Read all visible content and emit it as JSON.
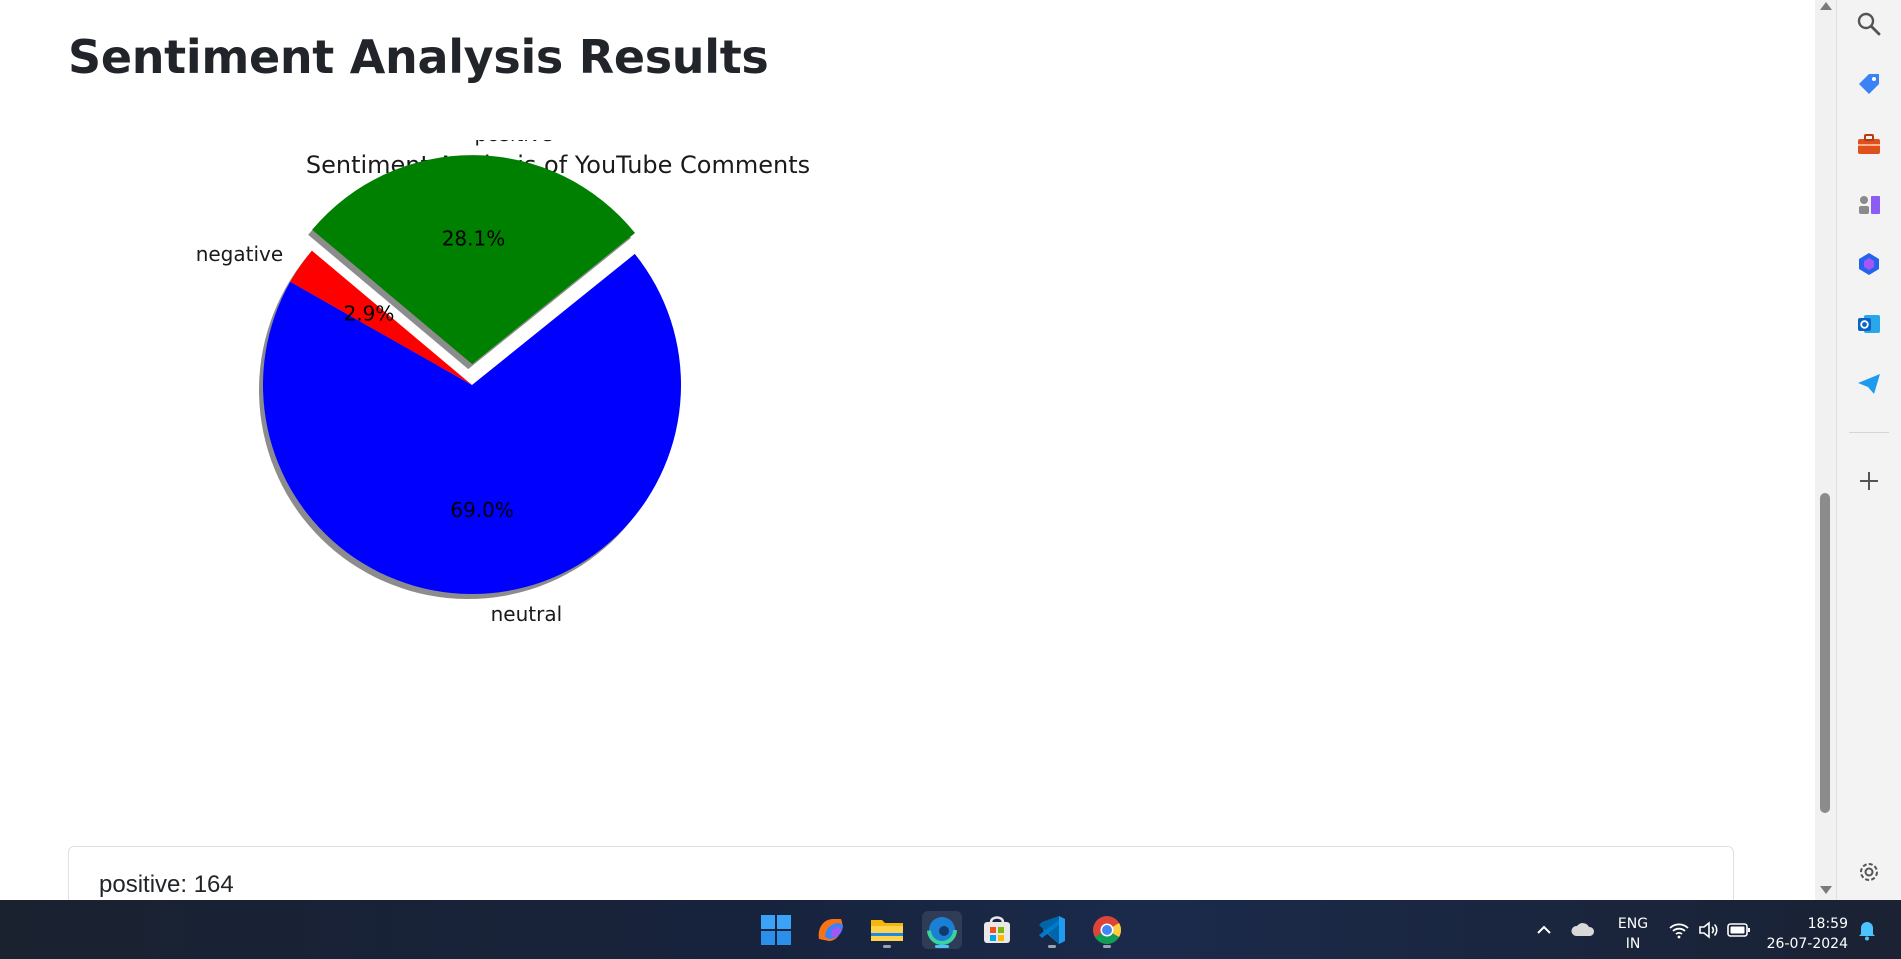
{
  "page": {
    "heading": "Sentiment Analysis Results",
    "counts": [
      {
        "label": "positive",
        "value": 164,
        "text": "positive: 164"
      }
    ]
  },
  "chart_data": {
    "type": "pie",
    "title": "Sentiment Analysis of YouTube Comments",
    "slices": [
      {
        "label": "negative",
        "percent": 2.9,
        "pct_label": "2.9%",
        "color": "#ff0000",
        "exploded": false
      },
      {
        "label": "neutral",
        "percent": 69.0,
        "pct_label": "69.0%",
        "color": "#0000ff",
        "exploded": false
      },
      {
        "label": "positive",
        "percent": 28.1,
        "pct_label": "28.1%",
        "color": "#008000",
        "exploded": true
      }
    ],
    "shadow": true,
    "start_angle_deg": 140
  },
  "sidebar": {
    "icons": [
      "search-icon",
      "tag-icon",
      "toolbox-icon",
      "chess-icon",
      "copilot-icon",
      "outlook-icon",
      "send-icon",
      "add-icon",
      "settings-icon"
    ]
  },
  "taskbar": {
    "apps": [
      "windows-start",
      "copilot",
      "file-explorer",
      "edge",
      "microsoft-store",
      "vscode",
      "chrome"
    ],
    "language": {
      "top": "ENG",
      "bottom": "IN"
    },
    "clock": {
      "time": "18:59",
      "date": "26-07-2024"
    }
  }
}
